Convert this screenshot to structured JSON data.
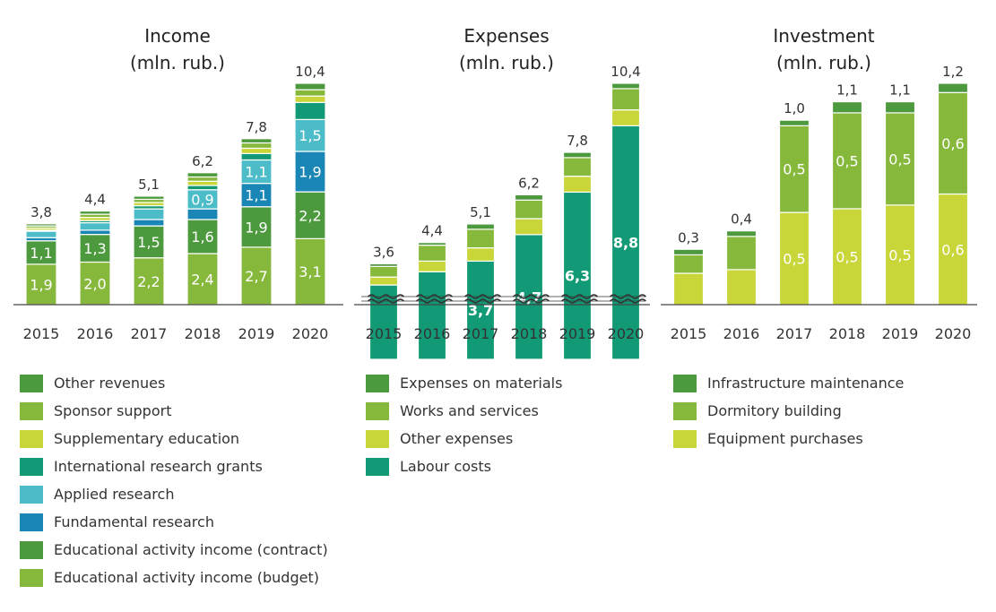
{
  "colors": {
    "other_revenues": "#4d9a3e",
    "sponsor_support": "#86b83b",
    "supplementary_education": "#c8d63a",
    "international_grants": "#129a76",
    "applied_research": "#4cbcc9",
    "fundamental_research": "#1a86b6",
    "edu_contract": "#4d9a3e",
    "edu_budget": "#86b83b",
    "labour": "#129a76",
    "axis": "#444444"
  },
  "chart_data": [
    {
      "type": "bar",
      "stacked": true,
      "title": "Income",
      "subtitle": "(mln. rub.)",
      "categories": [
        "2015",
        "2016",
        "2017",
        "2018",
        "2019",
        "2020"
      ],
      "totals": [
        "3,8",
        "4,4",
        "5,1",
        "6,2",
        "7,8",
        "10,4"
      ],
      "total_values": [
        3.8,
        4.4,
        5.1,
        6.2,
        7.8,
        10.4
      ],
      "ylim": [
        0,
        10.4
      ],
      "series": [
        {
          "name": "Educational activity income (budget)",
          "color_key": "edu_budget",
          "values": [
            1.9,
            2.0,
            2.2,
            2.4,
            2.7,
            3.1
          ],
          "labels": [
            "1,9",
            "2,0",
            "2,2",
            "2,4",
            "2,7",
            "3,1"
          ]
        },
        {
          "name": "Educational activity income (contract)",
          "color_key": "edu_contract",
          "values": [
            1.1,
            1.3,
            1.5,
            1.6,
            1.9,
            2.2
          ],
          "labels": [
            "1,1",
            "1,3",
            "1,5",
            "1,6",
            "1,9",
            "2,2"
          ]
        },
        {
          "name": "Fundamental research",
          "color_key": "fundamental_research",
          "values": [
            0.15,
            0.2,
            0.3,
            0.5,
            1.1,
            1.9
          ],
          "labels": [
            "",
            "",
            "",
            "",
            "1,1",
            "1,9"
          ]
        },
        {
          "name": "Applied research",
          "color_key": "applied_research",
          "values": [
            0.3,
            0.35,
            0.5,
            0.9,
            1.1,
            1.5
          ],
          "labels": [
            "",
            "",
            "",
            "0,9",
            "1,1",
            "1,5"
          ]
        },
        {
          "name": "International research grants",
          "color_key": "international_grants",
          "values": [
            0.05,
            0.1,
            0.15,
            0.2,
            0.3,
            0.8
          ],
          "labels": [
            "",
            "",
            "",
            "",
            "",
            ""
          ]
        },
        {
          "name": "Supplementary education",
          "color_key": "supplementary_education",
          "values": [
            0.1,
            0.15,
            0.15,
            0.2,
            0.25,
            0.3
          ],
          "labels": [
            "",
            "",
            "",
            "",
            "",
            ""
          ]
        },
        {
          "name": "Sponsor support",
          "color_key": "sponsor_support",
          "values": [
            0.1,
            0.15,
            0.15,
            0.2,
            0.25,
            0.3
          ],
          "labels": [
            "",
            "",
            "",
            "",
            "",
            ""
          ]
        },
        {
          "name": "Other revenues",
          "color_key": "other_revenues",
          "values": [
            0.1,
            0.15,
            0.15,
            0.2,
            0.2,
            0.3
          ],
          "labels": [
            "",
            "",
            "",
            "",
            "",
            ""
          ]
        }
      ],
      "label_color": "#333333"
    },
    {
      "type": "bar",
      "stacked": true,
      "broken_axis": true,
      "title": "Expenses",
      "subtitle": "(mln. rub.)",
      "categories": [
        "2015",
        "2016",
        "2017",
        "2018",
        "2019",
        "2020"
      ],
      "totals": [
        "3,6",
        "4,4",
        "5,1",
        "6,2",
        "7,8",
        "10,4"
      ],
      "total_values": [
        3.6,
        4.4,
        5.1,
        6.2,
        7.8,
        10.4
      ],
      "axis_break_value": 2.6,
      "series": [
        {
          "name": "Labour costs",
          "values": [
            2.8,
            3.3,
            3.7,
            4.7,
            6.3,
            8.8
          ],
          "labels": [
            "",
            "",
            "3,7",
            "4,7",
            "6,3",
            "8,8"
          ]
        },
        {
          "name": "Other expenses",
          "values": [
            0.3,
            0.4,
            0.5,
            0.6,
            0.6,
            0.6
          ],
          "labels": [
            "",
            "",
            "",
            "",
            "",
            ""
          ]
        },
        {
          "name": "Works and services",
          "values": [
            0.4,
            0.6,
            0.7,
            0.7,
            0.7,
            0.8
          ],
          "labels": [
            "",
            "",
            "",
            "",
            "",
            ""
          ]
        },
        {
          "name": "Expenses on materials",
          "values": [
            0.1,
            0.1,
            0.2,
            0.2,
            0.2,
            0.2
          ],
          "labels": [
            "",
            "",
            "",
            "",
            "",
            ""
          ]
        }
      ]
    },
    {
      "type": "bar",
      "stacked": true,
      "title": "Investment",
      "subtitle": "(mln. rub.)",
      "categories": [
        "2015",
        "2016",
        "2017",
        "2018",
        "2019",
        "2020"
      ],
      "totals": [
        "0,3",
        "0,4",
        "1,0",
        "1,1",
        "1,1",
        "1,2"
      ],
      "total_values": [
        0.3,
        0.4,
        1.0,
        1.1,
        1.1,
        1.2
      ],
      "ylim": [
        0,
        1.2
      ],
      "series": [
        {
          "name": "Equipment purchases",
          "values": [
            0.17,
            0.19,
            0.5,
            0.52,
            0.54,
            0.6
          ],
          "labels": [
            "",
            "",
            "0,5",
            "0,5",
            "0,5",
            "0,6"
          ]
        },
        {
          "name": "Dormitory building",
          "values": [
            0.1,
            0.18,
            0.47,
            0.52,
            0.5,
            0.55
          ],
          "labels": [
            "",
            "",
            "0,5",
            "0,5",
            "0,5",
            "0,6"
          ]
        },
        {
          "name": "Infrastructure maintenance",
          "values": [
            0.03,
            0.03,
            0.03,
            0.06,
            0.06,
            0.05
          ],
          "labels": [
            "",
            "",
            "",
            "",
            "",
            ""
          ]
        }
      ]
    }
  ],
  "legends": {
    "income": [
      "Other revenues",
      "Sponsor support",
      "Supplementary education",
      "International research grants",
      "Applied research",
      "Fundamental research",
      "Educational activity income (contract)",
      "Educational activity income (budget)"
    ],
    "expenses": [
      "Expenses on materials",
      "Works and services",
      "Other expenses",
      "Labour costs"
    ],
    "investment": [
      "Infrastructure maintenance",
      "Dormitory building",
      "Equipment purchases"
    ]
  }
}
